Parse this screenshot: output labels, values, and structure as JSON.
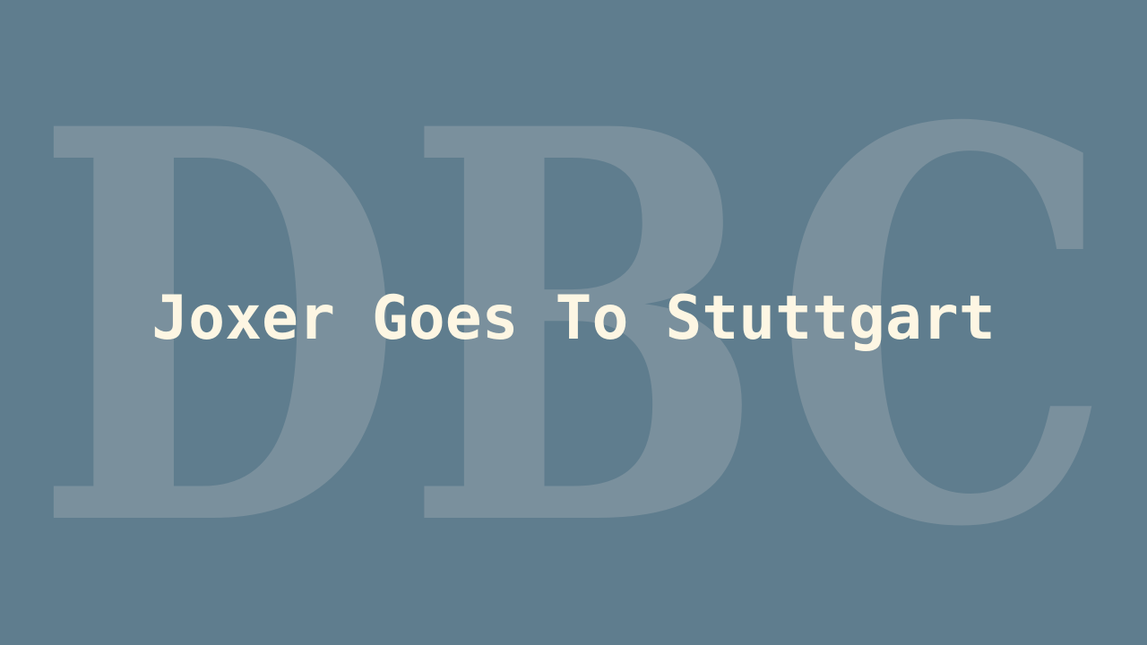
{
  "colors": {
    "background": "#5f7d8e",
    "watermark": "#7a909d",
    "title": "#fdf6e3"
  },
  "watermark": {
    "text": "DBC"
  },
  "title": {
    "text": "Joxer Goes To Stuttgart"
  }
}
